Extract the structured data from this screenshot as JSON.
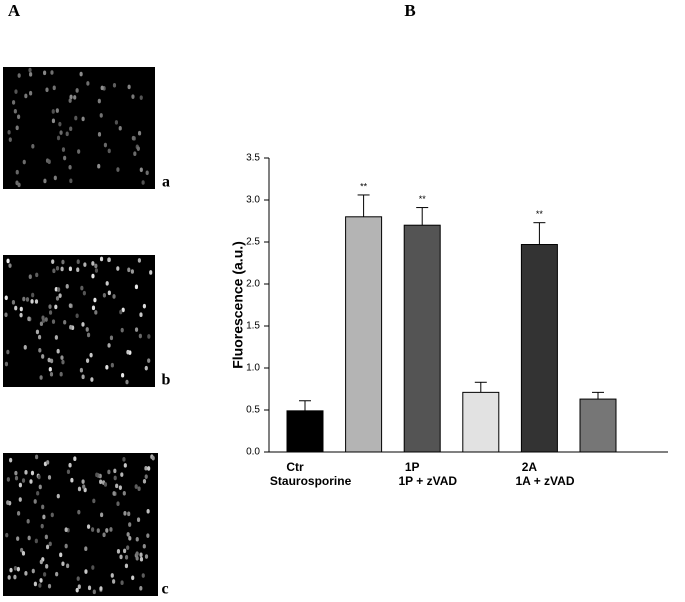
{
  "panel_labels": [
    "A",
    "B"
  ],
  "image_labels": [
    "a",
    "b",
    "c"
  ],
  "chart_data": {
    "type": "bar",
    "ylabel": "Fluorescence (a.u.)",
    "categories": [
      "Ctr",
      "Staurosporine",
      "1P",
      "1P + zVAD",
      "2A",
      "1A + zVAD"
    ],
    "values": [
      0.49,
      2.8,
      2.7,
      0.71,
      2.47,
      0.63
    ],
    "errors": [
      0.12,
      0.26,
      0.21,
      0.12,
      0.26,
      0.08
    ],
    "colors": [
      "#000000",
      "#b4b4b4",
      "#545454",
      "#e2e2e2",
      "#333333",
      "#767676"
    ],
    "annotations": [
      null,
      "**",
      "**",
      null,
      "**",
      null
    ],
    "ylim": [
      0,
      3.5
    ],
    "yticks": [
      {
        "value": 0,
        "label": "0.0"
      },
      0.5,
      {
        "value": 1,
        "label": "1.0"
      },
      1.5,
      {
        "value": 2,
        "label": "2.0"
      },
      2.5,
      {
        "value": 3,
        "label": "3.0"
      },
      3.5
    ]
  }
}
